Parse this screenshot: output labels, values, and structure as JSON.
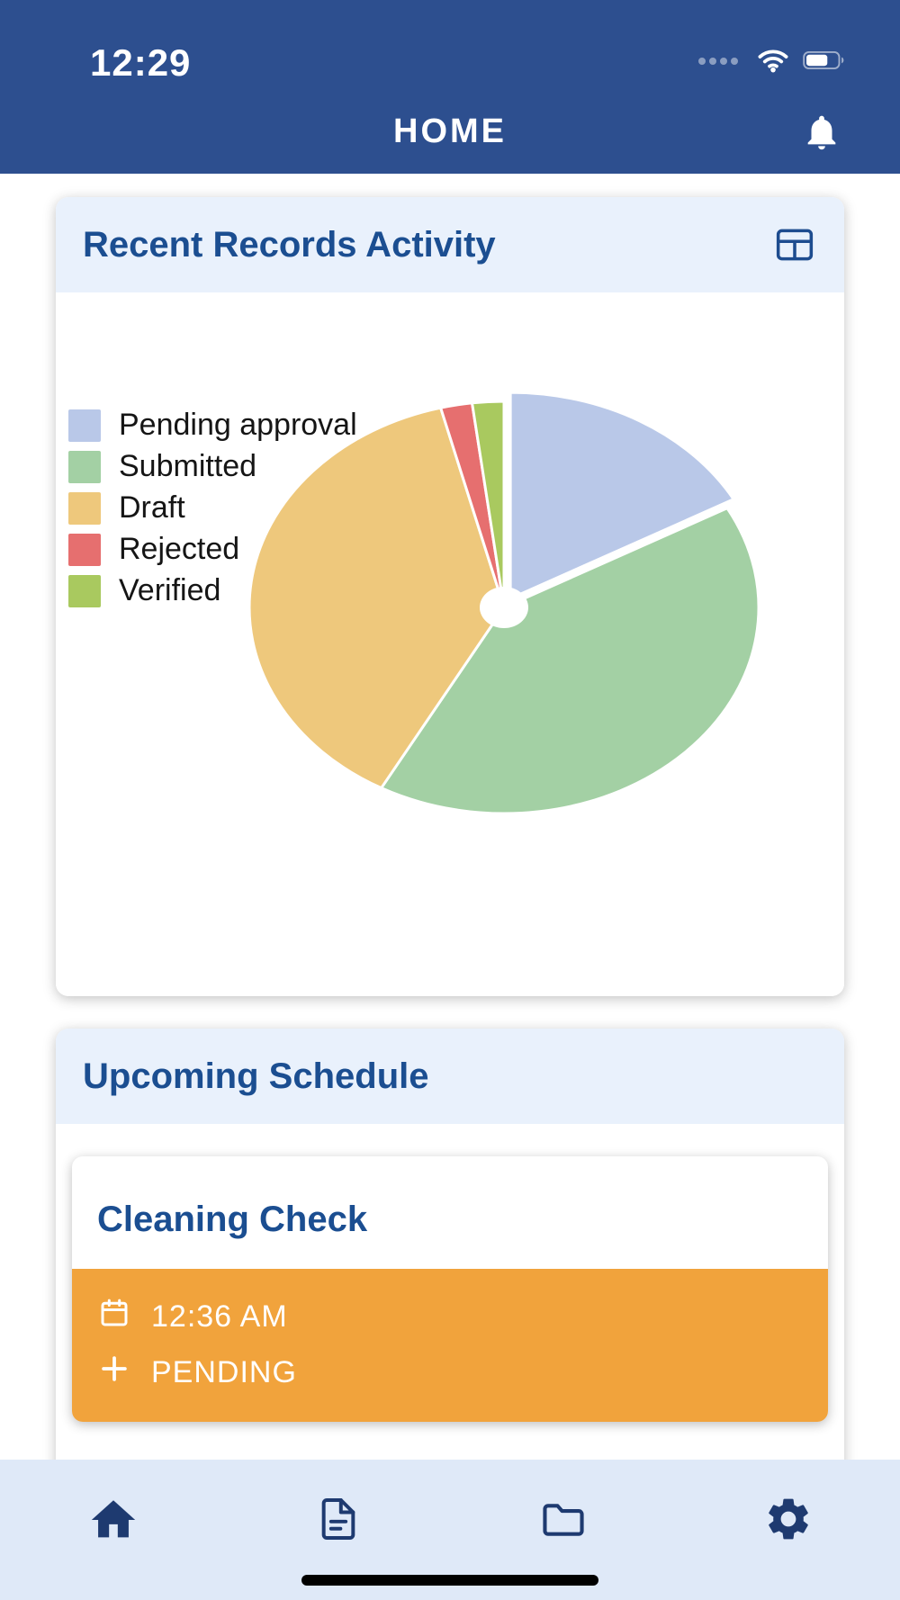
{
  "status_bar": {
    "time": "12:29",
    "battery_level": 0.6
  },
  "header": {
    "title": "HOME"
  },
  "records_card": {
    "title": "Recent Records Activity"
  },
  "schedule_card": {
    "title": "Upcoming Schedule"
  },
  "schedule_item": {
    "title": "Cleaning Check",
    "time": "12:36 AM",
    "status": "PENDING"
  },
  "tab_bar": {
    "items": [
      "home",
      "records",
      "files",
      "settings"
    ]
  },
  "chart_data": {
    "type": "pie",
    "title": "Recent Records Activity",
    "labels": [
      "Pending approval",
      "Submitted",
      "Draft",
      "Rejected",
      "Verified"
    ],
    "values": [
      17,
      41,
      38,
      2,
      2
    ],
    "value_format": "percent_estimate",
    "colors": [
      "#b9c8e8",
      "#a3d0a4",
      "#eec87c",
      "#e66f6f",
      "#a9c95f"
    ],
    "legend_position": "top-left",
    "donut_hole_ratio": 0.09,
    "exploded_slice": 0
  },
  "colors": {
    "header_bg": "#2d4f8f",
    "card_header_bg": "#e9f1fc",
    "title_blue": "#1b4e91",
    "accent_orange": "#f1a33c",
    "tab_bar_bg": "#dfe9f8",
    "tab_icon": "#1e3a70"
  }
}
